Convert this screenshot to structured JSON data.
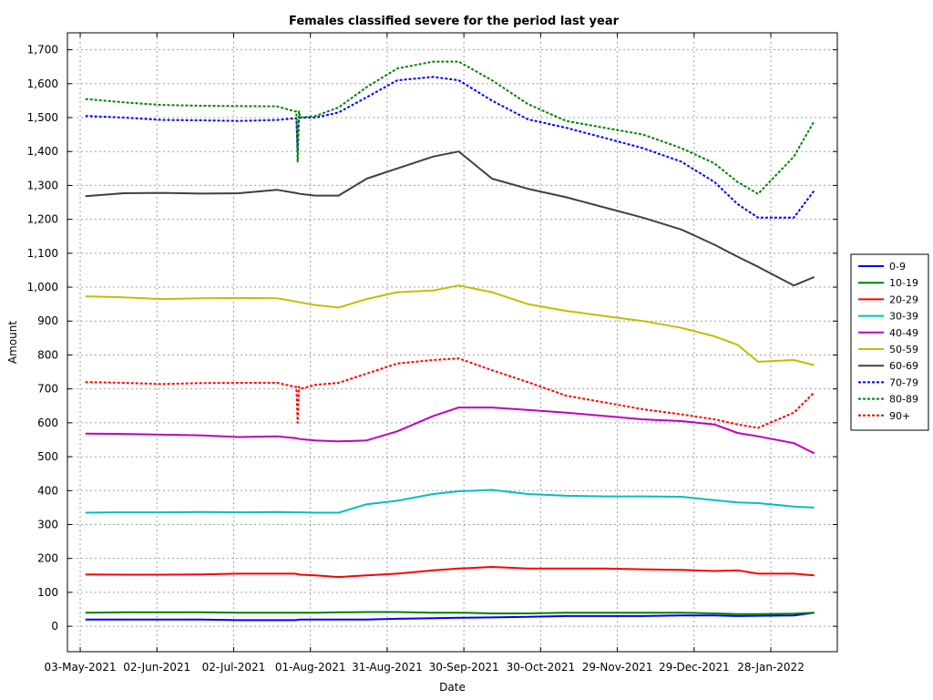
{
  "chart_data": {
    "type": "line",
    "title": "Females classified severe for the period last year",
    "xlabel": "Date",
    "ylabel": "Amount",
    "x_ticks": [
      "03-May-2021",
      "02-Jun-2021",
      "02-Jul-2021",
      "01-Aug-2021",
      "31-Aug-2021",
      "30-Sep-2021",
      "30-Oct-2021",
      "29-Nov-2021",
      "29-Dec-2021",
      "28-Jan-2022"
    ],
    "y_ticks": [
      "0",
      "100",
      "200",
      "300",
      "400",
      "500",
      "600",
      "700",
      "800",
      "900",
      "1,000",
      "1,100",
      "1,200",
      "1,300",
      "1,400",
      "1,500",
      "1,600",
      "1,700"
    ],
    "xlim": [
      "2021-04-28",
      "2022-02-23"
    ],
    "ylim": [
      -75,
      1750
    ],
    "grid": true,
    "legend_position": "right",
    "x": [
      "2021-05-05",
      "2021-05-20",
      "2021-06-04",
      "2021-06-19",
      "2021-07-04",
      "2021-07-19",
      "2021-07-26",
      "2021-07-28",
      "2021-08-03",
      "2021-08-12",
      "2021-08-23",
      "2021-09-04",
      "2021-09-18",
      "2021-09-28",
      "2021-10-11",
      "2021-10-25",
      "2021-11-09",
      "2021-11-24",
      "2021-12-09",
      "2021-12-24",
      "2022-01-06",
      "2022-01-15",
      "2022-01-23",
      "2022-02-06",
      "2022-02-14"
    ],
    "series": [
      {
        "name": "0-9",
        "color": "#0000ff",
        "dash": "solid",
        "values": [
          20,
          20,
          20,
          20,
          18,
          18,
          18,
          20,
          20,
          20,
          20,
          22,
          24,
          25,
          26,
          28,
          30,
          30,
          30,
          32,
          32,
          30,
          31,
          32,
          40
        ]
      },
      {
        "name": "10-19",
        "color": "#008000",
        "dash": "solid",
        "values": [
          40,
          41,
          41,
          41,
          40,
          40,
          40,
          40,
          40,
          41,
          42,
          42,
          40,
          40,
          38,
          38,
          40,
          40,
          40,
          40,
          38,
          36,
          36,
          37,
          40
        ]
      },
      {
        "name": "20-29",
        "color": "#ff0000",
        "dash": "solid",
        "values": [
          153,
          152,
          152,
          153,
          155,
          155,
          155,
          152,
          150,
          145,
          150,
          155,
          165,
          170,
          175,
          170,
          170,
          170,
          168,
          166,
          163,
          165,
          155,
          155,
          150
        ]
      },
      {
        "name": "30-39",
        "color": "#00bfbf",
        "dash": "solid",
        "values": [
          335,
          336,
          336,
          337,
          336,
          337,
          336,
          336,
          335,
          335,
          360,
          370,
          390,
          398,
          402,
          390,
          385,
          383,
          383,
          382,
          372,
          365,
          363,
          353,
          350
        ]
      },
      {
        "name": "40-49",
        "color": "#bf00bf",
        "dash": "solid",
        "values": [
          568,
          567,
          565,
          563,
          558,
          560,
          555,
          552,
          548,
          545,
          548,
          575,
          620,
          645,
          645,
          638,
          630,
          620,
          610,
          605,
          595,
          570,
          560,
          540,
          510
        ]
      },
      {
        "name": "50-59",
        "color": "#bfbf00",
        "dash": "solid",
        "values": [
          973,
          970,
          965,
          967,
          968,
          967,
          958,
          955,
          947,
          940,
          965,
          985,
          990,
          1005,
          985,
          950,
          930,
          915,
          900,
          880,
          855,
          830,
          780,
          785,
          770
        ]
      },
      {
        "name": "60-69",
        "color": "#404040",
        "dash": "solid",
        "values": [
          1268,
          1277,
          1278,
          1276,
          1277,
          1287,
          1278,
          1275,
          1270,
          1270,
          1320,
          1350,
          1385,
          1400,
          1320,
          1290,
          1265,
          1235,
          1205,
          1170,
          1125,
          1090,
          1060,
          1005,
          1030
        ]
      },
      {
        "name": "70-79",
        "color": "#0000ff",
        "dash": "dashed",
        "values": [
          1505,
          1500,
          1493,
          1492,
          1490,
          1493,
          1498,
          1500,
          1500,
          1515,
          1560,
          1610,
          1620,
          1610,
          1550,
          1495,
          1470,
          1440,
          1410,
          1370,
          1310,
          1245,
          1205,
          1205,
          1285
        ]
      },
      {
        "name": "80-89",
        "color": "#008000",
        "dash": "dashed",
        "values": [
          1555,
          1545,
          1537,
          1535,
          1534,
          1533,
          1518,
          1500,
          1505,
          1530,
          1590,
          1645,
          1665,
          1665,
          1610,
          1540,
          1490,
          1470,
          1450,
          1410,
          1365,
          1310,
          1275,
          1385,
          1490
        ]
      },
      {
        "name": "90+",
        "color": "#ff0000",
        "dash": "dashed",
        "values": [
          720,
          718,
          714,
          717,
          718,
          718,
          706,
          700,
          712,
          718,
          745,
          775,
          785,
          790,
          755,
          720,
          680,
          660,
          640,
          625,
          610,
          595,
          585,
          630,
          690
        ]
      }
    ],
    "dips": [
      {
        "series": "70-79",
        "x": "2021-07-27",
        "value": 1400
      },
      {
        "series": "80-89",
        "x": "2021-07-27",
        "value": 1370
      },
      {
        "series": "90+",
        "x": "2021-07-27",
        "value": 600
      }
    ]
  }
}
